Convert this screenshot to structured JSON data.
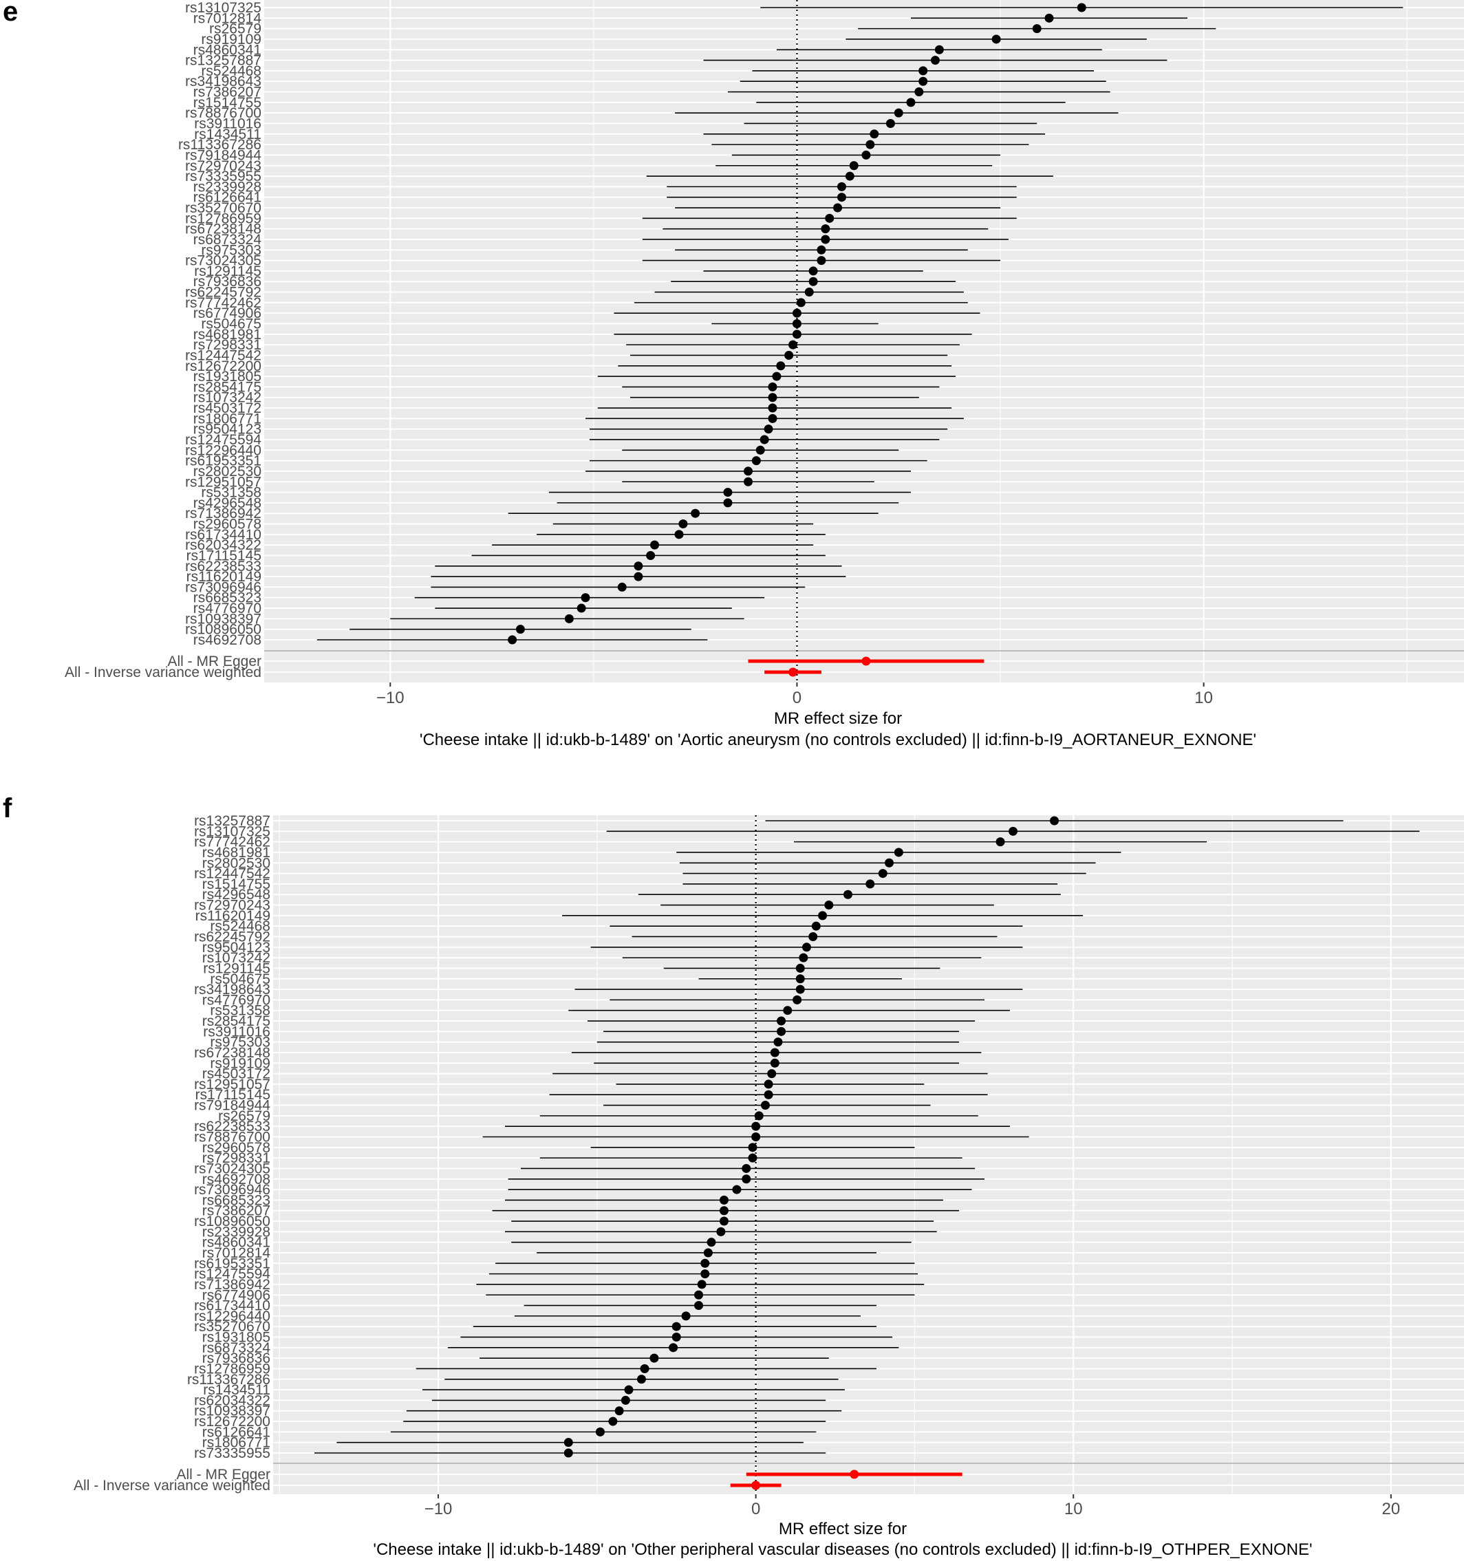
{
  "colors": {
    "panel_bg": "#ebebeb",
    "grid": "#ffffff",
    "point": "#000000",
    "summary": "#ff0000",
    "separator": "#bdbdbd",
    "axis_text": "#4d4d4d"
  },
  "chart_data": [
    {
      "type": "forest",
      "panel_letter": "e",
      "xlabel_line1": "MR effect size for",
      "xlabel_line2": "'Cheese intake || id:ukb-b-1489' on 'Aortic aneurysm (no controls excluded) || id:finn-b-I9_AORTANEUR_EXNONE'",
      "xlim": [
        -13.1,
        16.4
      ],
      "xticks": [
        -10,
        0,
        10
      ],
      "tick_labels": [
        "−10",
        "0",
        "10"
      ],
      "reference_line_x": 0,
      "snps": [
        {
          "name": "rs13107325",
          "b": 7.0,
          "lo": -0.9,
          "hi": 14.9
        },
        {
          "name": "rs7012814",
          "b": 6.2,
          "lo": 2.8,
          "hi": 9.6
        },
        {
          "name": "rs26579",
          "b": 5.9,
          "lo": 1.5,
          "hi": 10.3
        },
        {
          "name": "rs919109",
          "b": 4.9,
          "lo": 1.2,
          "hi": 8.6
        },
        {
          "name": "rs4860341",
          "b": 3.5,
          "lo": -0.5,
          "hi": 7.5
        },
        {
          "name": "rs13257887",
          "b": 3.4,
          "lo": -2.3,
          "hi": 9.1
        },
        {
          "name": "rs524468",
          "b": 3.1,
          "lo": -1.1,
          "hi": 7.3
        },
        {
          "name": "rs34198643",
          "b": 3.1,
          "lo": -1.4,
          "hi": 7.6
        },
        {
          "name": "rs7386207",
          "b": 3.0,
          "lo": -1.7,
          "hi": 7.7
        },
        {
          "name": "rs1514755",
          "b": 2.8,
          "lo": -1.0,
          "hi": 6.6
        },
        {
          "name": "rs78876700",
          "b": 2.5,
          "lo": -3.0,
          "hi": 7.9
        },
        {
          "name": "rs3911016",
          "b": 2.3,
          "lo": -1.3,
          "hi": 5.9
        },
        {
          "name": "rs1434511",
          "b": 1.9,
          "lo": -2.3,
          "hi": 6.1
        },
        {
          "name": "rs113367286",
          "b": 1.8,
          "lo": -2.1,
          "hi": 5.7
        },
        {
          "name": "rs79184944",
          "b": 1.7,
          "lo": -1.6,
          "hi": 5.0
        },
        {
          "name": "rs72970243",
          "b": 1.4,
          "lo": -2.0,
          "hi": 4.8
        },
        {
          "name": "rs73335955",
          "b": 1.3,
          "lo": -3.7,
          "hi": 6.3
        },
        {
          "name": "rs2339928",
          "b": 1.1,
          "lo": -3.2,
          "hi": 5.4
        },
        {
          "name": "rs6126641",
          "b": 1.1,
          "lo": -3.2,
          "hi": 5.4
        },
        {
          "name": "rs35270670",
          "b": 1.0,
          "lo": -3.0,
          "hi": 5.0
        },
        {
          "name": "rs12786959",
          "b": 0.8,
          "lo": -3.8,
          "hi": 5.4
        },
        {
          "name": "rs67238148",
          "b": 0.7,
          "lo": -3.3,
          "hi": 4.7
        },
        {
          "name": "rs6873324",
          "b": 0.7,
          "lo": -3.8,
          "hi": 5.2
        },
        {
          "name": "rs975303",
          "b": 0.6,
          "lo": -3.0,
          "hi": 4.2
        },
        {
          "name": "rs73024305",
          "b": 0.6,
          "lo": -3.8,
          "hi": 5.0
        },
        {
          "name": "rs1291145",
          "b": 0.4,
          "lo": -2.3,
          "hi": 3.1
        },
        {
          "name": "rs7936836",
          "b": 0.4,
          "lo": -3.1,
          "hi": 3.9
        },
        {
          "name": "rs62245792",
          "b": 0.3,
          "lo": -3.5,
          "hi": 4.1
        },
        {
          "name": "rs77742462",
          "b": 0.1,
          "lo": -4.0,
          "hi": 4.2
        },
        {
          "name": "rs6774906",
          "b": 0.0,
          "lo": -4.5,
          "hi": 4.5
        },
        {
          "name": "rs504675",
          "b": 0.0,
          "lo": -2.1,
          "hi": 2.0
        },
        {
          "name": "rs4681981",
          "b": 0.0,
          "lo": -4.5,
          "hi": 4.3
        },
        {
          "name": "rs7298331",
          "b": -0.1,
          "lo": -4.2,
          "hi": 4.0
        },
        {
          "name": "rs12447542",
          "b": -0.2,
          "lo": -4.1,
          "hi": 3.7
        },
        {
          "name": "rs12672200",
          "b": -0.4,
          "lo": -4.4,
          "hi": 3.8
        },
        {
          "name": "rs1931805",
          "b": -0.5,
          "lo": -4.9,
          "hi": 3.9
        },
        {
          "name": "rs2854175",
          "b": -0.6,
          "lo": -4.3,
          "hi": 3.5
        },
        {
          "name": "rs1073242",
          "b": -0.6,
          "lo": -4.1,
          "hi": 3.0
        },
        {
          "name": "rs4503172",
          "b": -0.6,
          "lo": -4.9,
          "hi": 3.8
        },
        {
          "name": "rs1806771",
          "b": -0.6,
          "lo": -5.2,
          "hi": 4.1
        },
        {
          "name": "rs9504123",
          "b": -0.7,
          "lo": -5.1,
          "hi": 3.7
        },
        {
          "name": "rs12475594",
          "b": -0.8,
          "lo": -5.1,
          "hi": 3.5
        },
        {
          "name": "rs12296440",
          "b": -0.9,
          "lo": -4.3,
          "hi": 2.5
        },
        {
          "name": "rs61953351",
          "b": -1.0,
          "lo": -5.1,
          "hi": 3.2
        },
        {
          "name": "rs2802530",
          "b": -1.2,
          "lo": -5.2,
          "hi": 2.8
        },
        {
          "name": "rs12951057",
          "b": -1.2,
          "lo": -4.3,
          "hi": 1.9
        },
        {
          "name": "rs531358",
          "b": -1.7,
          "lo": -6.1,
          "hi": 2.8
        },
        {
          "name": "rs4296548",
          "b": -1.7,
          "lo": -5.9,
          "hi": 2.5
        },
        {
          "name": "rs71386942",
          "b": -2.5,
          "lo": -7.1,
          "hi": 2.0
        },
        {
          "name": "rs2960578",
          "b": -2.8,
          "lo": -6.0,
          "hi": 0.4
        },
        {
          "name": "rs61734410",
          "b": -2.9,
          "lo": -6.4,
          "hi": 0.7
        },
        {
          "name": "rs62034322",
          "b": -3.5,
          "lo": -7.5,
          "hi": 0.4
        },
        {
          "name": "rs17115145",
          "b": -3.6,
          "lo": -8.0,
          "hi": 0.7
        },
        {
          "name": "rs62238533",
          "b": -3.9,
          "lo": -8.9,
          "hi": 1.1
        },
        {
          "name": "rs11620149",
          "b": -3.9,
          "lo": -9.0,
          "hi": 1.2
        },
        {
          "name": "rs73096946",
          "b": -4.3,
          "lo": -9.0,
          "hi": 0.2
        },
        {
          "name": "rs6685323",
          "b": -5.2,
          "lo": -9.4,
          "hi": -0.8
        },
        {
          "name": "rs4776970",
          "b": -5.3,
          "lo": -8.9,
          "hi": -1.6
        },
        {
          "name": "rs10938397",
          "b": -5.6,
          "lo": -10.0,
          "hi": -1.3
        },
        {
          "name": "rs10896050",
          "b": -6.8,
          "lo": -11.0,
          "hi": -2.6
        },
        {
          "name": "rs4692708",
          "b": -7.0,
          "lo": -11.8,
          "hi": -2.2
        }
      ],
      "summaries": [
        {
          "name": "All - MR Egger",
          "b": 1.7,
          "lo": -1.2,
          "hi": 4.6
        },
        {
          "name": "All - Inverse variance weighted",
          "b": -0.1,
          "lo": -0.8,
          "hi": 0.6
        }
      ]
    },
    {
      "type": "forest",
      "panel_letter": "f",
      "xlabel_line1": "MR effect size for",
      "xlabel_line2": "'Cheese intake || id:ukb-b-1489' on 'Other peripheral vascular diseases (no controls excluded) || id:finn-b-I9_OTHPER_EXNONE'",
      "xlim": [
        -15.2,
        22.3
      ],
      "xticks": [
        -10,
        0,
        10,
        20
      ],
      "tick_labels": [
        "−10",
        "0",
        "10",
        "20"
      ],
      "reference_line_x": 0,
      "snps": [
        {
          "name": "rs13257887",
          "b": 9.4,
          "lo": 0.3,
          "hi": 18.5
        },
        {
          "name": "rs13107325",
          "b": 8.1,
          "lo": -4.7,
          "hi": 20.9
        },
        {
          "name": "rs77742462",
          "b": 7.7,
          "lo": 1.2,
          "hi": 14.2
        },
        {
          "name": "rs4681981",
          "b": 4.5,
          "lo": -2.5,
          "hi": 11.5
        },
        {
          "name": "rs2802530",
          "b": 4.2,
          "lo": -2.4,
          "hi": 10.7
        },
        {
          "name": "rs12447542",
          "b": 4.0,
          "lo": -2.3,
          "hi": 10.4
        },
        {
          "name": "rs1514755",
          "b": 3.6,
          "lo": -2.3,
          "hi": 9.5
        },
        {
          "name": "rs4296548",
          "b": 2.9,
          "lo": -3.7,
          "hi": 9.6
        },
        {
          "name": "rs72970243",
          "b": 2.3,
          "lo": -3.0,
          "hi": 7.5
        },
        {
          "name": "rs11620149",
          "b": 2.1,
          "lo": -6.1,
          "hi": 10.3
        },
        {
          "name": "rs524468",
          "b": 1.9,
          "lo": -4.6,
          "hi": 8.4
        },
        {
          "name": "rs62245792",
          "b": 1.8,
          "lo": -3.9,
          "hi": 7.6
        },
        {
          "name": "rs9504123",
          "b": 1.6,
          "lo": -5.2,
          "hi": 8.4
        },
        {
          "name": "rs1073242",
          "b": 1.5,
          "lo": -4.2,
          "hi": 7.1
        },
        {
          "name": "rs1291145",
          "b": 1.4,
          "lo": -2.9,
          "hi": 5.8
        },
        {
          "name": "rs504675",
          "b": 1.4,
          "lo": -1.8,
          "hi": 4.6
        },
        {
          "name": "rs34198643",
          "b": 1.4,
          "lo": -5.7,
          "hi": 8.4
        },
        {
          "name": "rs4776970",
          "b": 1.3,
          "lo": -4.6,
          "hi": 7.2
        },
        {
          "name": "rs531358",
          "b": 1.0,
          "lo": -5.9,
          "hi": 8.0
        },
        {
          "name": "rs2854175",
          "b": 0.8,
          "lo": -5.3,
          "hi": 6.9
        },
        {
          "name": "rs3911016",
          "b": 0.8,
          "lo": -4.8,
          "hi": 6.4
        },
        {
          "name": "rs975303",
          "b": 0.7,
          "lo": -5.0,
          "hi": 6.4
        },
        {
          "name": "rs67238148",
          "b": 0.6,
          "lo": -5.8,
          "hi": 7.1
        },
        {
          "name": "rs919109",
          "b": 0.6,
          "lo": -5.1,
          "hi": 6.4
        },
        {
          "name": "rs4503172",
          "b": 0.5,
          "lo": -6.4,
          "hi": 7.3
        },
        {
          "name": "rs12951057",
          "b": 0.4,
          "lo": -4.4,
          "hi": 5.3
        },
        {
          "name": "rs17115145",
          "b": 0.4,
          "lo": -6.5,
          "hi": 7.3
        },
        {
          "name": "rs79184944",
          "b": 0.3,
          "lo": -4.8,
          "hi": 5.5
        },
        {
          "name": "rs26579",
          "b": 0.1,
          "lo": -6.8,
          "hi": 7.0
        },
        {
          "name": "rs62238533",
          "b": 0.0,
          "lo": -7.9,
          "hi": 8.0
        },
        {
          "name": "rs78876700",
          "b": 0.0,
          "lo": -8.6,
          "hi": 8.6
        },
        {
          "name": "rs2960578",
          "b": -0.1,
          "lo": -5.2,
          "hi": 5.0
        },
        {
          "name": "rs7298331",
          "b": -0.1,
          "lo": -6.8,
          "hi": 6.5
        },
        {
          "name": "rs73024305",
          "b": -0.3,
          "lo": -7.4,
          "hi": 6.9
        },
        {
          "name": "rs4692708",
          "b": -0.3,
          "lo": -7.8,
          "hi": 7.2
        },
        {
          "name": "rs73096946",
          "b": -0.6,
          "lo": -7.8,
          "hi": 6.8
        },
        {
          "name": "rs6685323",
          "b": -1.0,
          "lo": -7.9,
          "hi": 5.9
        },
        {
          "name": "rs7386207",
          "b": -1.0,
          "lo": -8.3,
          "hi": 6.4
        },
        {
          "name": "rs10896050",
          "b": -1.0,
          "lo": -7.7,
          "hi": 5.6
        },
        {
          "name": "rs2339928",
          "b": -1.1,
          "lo": -7.9,
          "hi": 5.7
        },
        {
          "name": "rs4860341",
          "b": -1.4,
          "lo": -7.7,
          "hi": 4.9
        },
        {
          "name": "rs7012814",
          "b": -1.5,
          "lo": -6.9,
          "hi": 3.8
        },
        {
          "name": "rs61953351",
          "b": -1.6,
          "lo": -8.2,
          "hi": 5.0
        },
        {
          "name": "rs12475594",
          "b": -1.6,
          "lo": -8.4,
          "hi": 5.1
        },
        {
          "name": "rs71386942",
          "b": -1.7,
          "lo": -8.8,
          "hi": 5.3
        },
        {
          "name": "rs6774906",
          "b": -1.8,
          "lo": -8.5,
          "hi": 5.0
        },
        {
          "name": "rs61734410",
          "b": -1.8,
          "lo": -7.3,
          "hi": 3.8
        },
        {
          "name": "rs12296440",
          "b": -2.2,
          "lo": -7.6,
          "hi": 3.3
        },
        {
          "name": "rs35270670",
          "b": -2.5,
          "lo": -8.9,
          "hi": 3.8
        },
        {
          "name": "rs1931805",
          "b": -2.5,
          "lo": -9.3,
          "hi": 4.3
        },
        {
          "name": "rs6873324",
          "b": -2.6,
          "lo": -9.7,
          "hi": 4.5
        },
        {
          "name": "rs7936836",
          "b": -3.2,
          "lo": -8.7,
          "hi": 2.3
        },
        {
          "name": "rs12786959",
          "b": -3.5,
          "lo": -10.7,
          "hi": 3.8
        },
        {
          "name": "rs113367286",
          "b": -3.6,
          "lo": -9.8,
          "hi": 2.6
        },
        {
          "name": "rs1434511",
          "b": -4.0,
          "lo": -10.5,
          "hi": 2.8
        },
        {
          "name": "rs62034322",
          "b": -4.1,
          "lo": -10.2,
          "hi": 2.2
        },
        {
          "name": "rs10938397",
          "b": -4.3,
          "lo": -11.0,
          "hi": 2.7
        },
        {
          "name": "rs12672200",
          "b": -4.5,
          "lo": -11.1,
          "hi": 2.2
        },
        {
          "name": "rs6126641",
          "b": -4.9,
          "lo": -11.5,
          "hi": 1.9
        },
        {
          "name": "rs1806771",
          "b": -5.9,
          "lo": -13.2,
          "hi": 1.5
        },
        {
          "name": "rs73335955",
          "b": -5.9,
          "lo": -13.9,
          "hi": 2.2
        }
      ],
      "summaries": [
        {
          "name": "All - MR Egger",
          "b": 3.1,
          "lo": -0.3,
          "hi": 6.5
        },
        {
          "name": "All - Inverse variance weighted",
          "b": 0.0,
          "lo": -0.8,
          "hi": 0.8
        }
      ]
    }
  ]
}
